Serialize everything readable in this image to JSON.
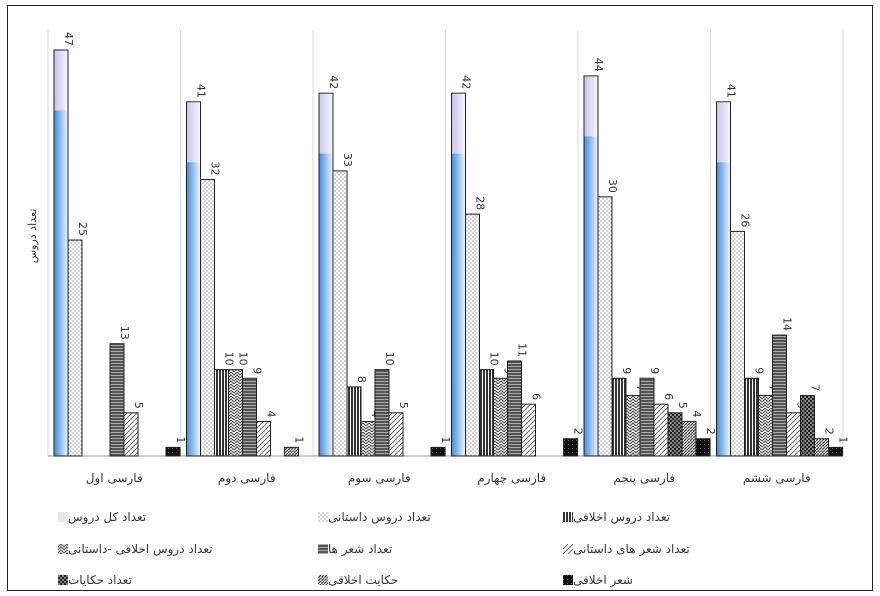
{
  "chart_data": {
    "type": "bar",
    "ylabel": "تعداد دروس",
    "categories": [
      "فارسی اول",
      "فارسی دوم",
      "فارسی سوم",
      "فارسی چهارم",
      "فارسی پنجم",
      "فارسی ششم"
    ],
    "series": [
      {
        "name": "تعداد کل دروس",
        "values": [
          47,
          41,
          42,
          42,
          44,
          41
        ]
      },
      {
        "name": "تعداد دروس داستانی",
        "values": [
          25,
          32,
          33,
          28,
          30,
          26
        ]
      },
      {
        "name": "تعداد دروس اخلاقی",
        "values": [
          0,
          10,
          8,
          10,
          9,
          9
        ]
      },
      {
        "name": "تعداد دروس اخلاقی -داستانی",
        "values": [
          0,
          10,
          4,
          9,
          7,
          7
        ]
      },
      {
        "name": "تعداد شعر ها",
        "values": [
          13,
          9,
          10,
          11,
          9,
          14
        ]
      },
      {
        "name": "تعداد شعر های داستانی",
        "values": [
          5,
          4,
          5,
          6,
          6,
          5
        ]
      },
      {
        "name": "تعداد حکایات",
        "values": [
          0,
          0,
          0,
          0,
          5,
          7
        ]
      },
      {
        "name": "حکایت اخلاقی",
        "values": [
          0,
          1,
          0,
          0,
          4,
          2
        ]
      },
      {
        "name": "شعر اخلاقی",
        "values": [
          1,
          0,
          1,
          2,
          2,
          1
        ]
      }
    ],
    "ylim": [
      0,
      47
    ],
    "grid": false,
    "legend": "bottom"
  }
}
